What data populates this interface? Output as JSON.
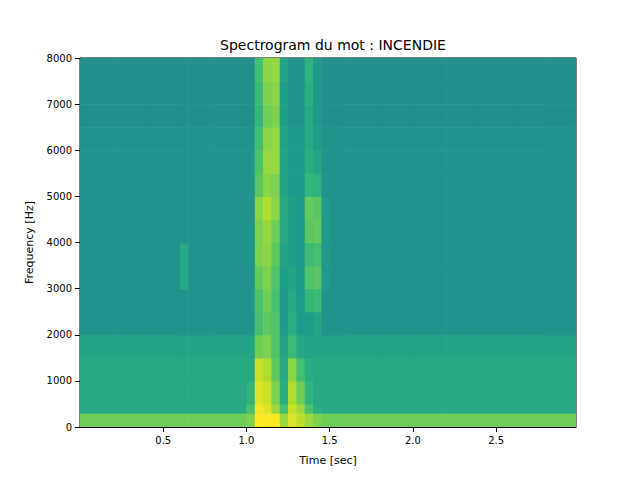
{
  "chart_data": {
    "type": "heatmap",
    "title": "Spectrogram du mot : INCENDIE",
    "x_label": "Time [sec]",
    "y_label": "Frequency [Hz]",
    "xlim": [
      0,
      2.98
    ],
    "xticks": [
      0.5,
      {
        "value": 1,
        "label": "1.0"
      },
      1.5,
      {
        "value": 2,
        "label": "2.0"
      },
      2.5
    ],
    "ylim": [
      0,
      8000
    ],
    "yticks": [
      0,
      1000,
      2000,
      3000,
      4000,
      5000,
      6000,
      7000,
      8000
    ],
    "zlim": [
      0,
      1
    ],
    "x_bins": [
      0,
      0.2,
      0.4,
      0.6,
      0.65,
      0.8,
      1.0,
      1.05,
      1.1,
      1.15,
      1.2,
      1.25,
      1.3,
      1.35,
      1.4,
      1.45,
      1.5,
      1.6,
      1.8,
      2.0,
      2.2,
      2.4,
      2.6,
      2.8,
      3.0
    ],
    "y_bins": [
      0,
      300,
      500,
      1000,
      1500,
      2000,
      2500,
      3000,
      3500,
      4000,
      4500,
      5000,
      5500,
      6000,
      6500,
      7000,
      7500,
      8000
    ],
    "cells": [
      [
        0.78,
        0.78,
        0.78,
        0.78,
        0.78,
        0.78,
        0.8,
        1.0,
        1.0,
        1.0,
        0.85,
        0.95,
        0.9,
        0.85,
        0.8,
        0.78,
        0.78,
        0.78,
        0.78,
        0.78,
        0.78,
        0.78,
        0.78,
        0.78
      ],
      [
        0.6,
        0.6,
        0.6,
        0.6,
        0.6,
        0.6,
        0.7,
        0.98,
        0.95,
        0.85,
        0.7,
        0.92,
        0.85,
        0.72,
        0.62,
        0.6,
        0.6,
        0.6,
        0.6,
        0.6,
        0.6,
        0.6,
        0.6,
        0.6
      ],
      [
        0.6,
        0.6,
        0.6,
        0.6,
        0.6,
        0.6,
        0.65,
        0.95,
        0.92,
        0.8,
        0.62,
        0.88,
        0.78,
        0.65,
        0.6,
        0.6,
        0.6,
        0.6,
        0.6,
        0.6,
        0.6,
        0.6,
        0.6,
        0.6
      ],
      [
        0.6,
        0.6,
        0.6,
        0.6,
        0.6,
        0.6,
        0.6,
        0.92,
        0.88,
        0.75,
        0.6,
        0.82,
        0.7,
        0.62,
        0.6,
        0.6,
        0.6,
        0.6,
        0.6,
        0.6,
        0.6,
        0.6,
        0.6,
        0.6
      ],
      [
        0.58,
        0.58,
        0.58,
        0.58,
        0.58,
        0.58,
        0.58,
        0.78,
        0.8,
        0.72,
        0.58,
        0.68,
        0.6,
        0.58,
        0.58,
        0.58,
        0.58,
        0.58,
        0.58,
        0.58,
        0.58,
        0.58,
        0.58,
        0.58
      ],
      [
        0.52,
        0.52,
        0.52,
        0.52,
        0.52,
        0.52,
        0.52,
        0.7,
        0.75,
        0.72,
        0.54,
        0.62,
        0.54,
        0.55,
        0.58,
        0.52,
        0.52,
        0.52,
        0.52,
        0.52,
        0.52,
        0.52,
        0.52,
        0.52
      ],
      [
        0.52,
        0.52,
        0.52,
        0.52,
        0.52,
        0.52,
        0.52,
        0.72,
        0.78,
        0.7,
        0.54,
        0.6,
        0.54,
        0.66,
        0.68,
        0.52,
        0.52,
        0.52,
        0.52,
        0.52,
        0.52,
        0.52,
        0.52,
        0.52
      ],
      [
        0.52,
        0.52,
        0.52,
        0.6,
        0.52,
        0.52,
        0.52,
        0.76,
        0.8,
        0.72,
        0.56,
        0.58,
        0.54,
        0.72,
        0.74,
        0.54,
        0.52,
        0.52,
        0.52,
        0.52,
        0.52,
        0.52,
        0.52,
        0.52
      ],
      [
        0.52,
        0.52,
        0.52,
        0.6,
        0.52,
        0.52,
        0.52,
        0.8,
        0.82,
        0.75,
        0.58,
        0.56,
        0.54,
        0.68,
        0.7,
        0.54,
        0.52,
        0.52,
        0.52,
        0.52,
        0.52,
        0.52,
        0.52,
        0.52
      ],
      [
        0.52,
        0.52,
        0.52,
        0.52,
        0.52,
        0.52,
        0.52,
        0.8,
        0.84,
        0.78,
        0.6,
        0.56,
        0.54,
        0.74,
        0.76,
        0.54,
        0.52,
        0.52,
        0.52,
        0.52,
        0.52,
        0.52,
        0.52,
        0.52
      ],
      [
        0.52,
        0.52,
        0.52,
        0.52,
        0.52,
        0.52,
        0.52,
        0.82,
        0.88,
        0.82,
        0.6,
        0.56,
        0.54,
        0.76,
        0.74,
        0.54,
        0.52,
        0.52,
        0.52,
        0.52,
        0.52,
        0.52,
        0.52,
        0.52
      ],
      [
        0.52,
        0.52,
        0.52,
        0.52,
        0.52,
        0.52,
        0.52,
        0.74,
        0.82,
        0.8,
        0.58,
        0.54,
        0.54,
        0.66,
        0.64,
        0.52,
        0.52,
        0.52,
        0.52,
        0.52,
        0.52,
        0.52,
        0.52,
        0.52
      ],
      [
        0.52,
        0.52,
        0.52,
        0.52,
        0.52,
        0.52,
        0.52,
        0.72,
        0.84,
        0.84,
        0.58,
        0.54,
        0.54,
        0.62,
        0.58,
        0.52,
        0.52,
        0.52,
        0.52,
        0.52,
        0.52,
        0.52,
        0.52,
        0.52
      ],
      [
        0.52,
        0.52,
        0.52,
        0.52,
        0.52,
        0.52,
        0.52,
        0.7,
        0.82,
        0.84,
        0.58,
        0.54,
        0.54,
        0.6,
        0.56,
        0.52,
        0.52,
        0.52,
        0.52,
        0.52,
        0.52,
        0.52,
        0.52,
        0.52
      ],
      [
        0.5,
        0.5,
        0.5,
        0.5,
        0.5,
        0.5,
        0.5,
        0.66,
        0.78,
        0.8,
        0.56,
        0.52,
        0.52,
        0.6,
        0.54,
        0.5,
        0.5,
        0.5,
        0.5,
        0.5,
        0.5,
        0.5,
        0.5,
        0.5
      ],
      [
        0.5,
        0.5,
        0.5,
        0.5,
        0.5,
        0.5,
        0.5,
        0.68,
        0.8,
        0.82,
        0.56,
        0.52,
        0.52,
        0.62,
        0.54,
        0.5,
        0.5,
        0.5,
        0.5,
        0.5,
        0.5,
        0.5,
        0.5,
        0.5
      ],
      [
        0.5,
        0.5,
        0.5,
        0.5,
        0.5,
        0.5,
        0.5,
        0.7,
        0.82,
        0.84,
        0.58,
        0.52,
        0.52,
        0.64,
        0.54,
        0.5,
        0.5,
        0.5,
        0.5,
        0.5,
        0.5,
        0.5,
        0.5,
        0.5
      ]
    ]
  }
}
